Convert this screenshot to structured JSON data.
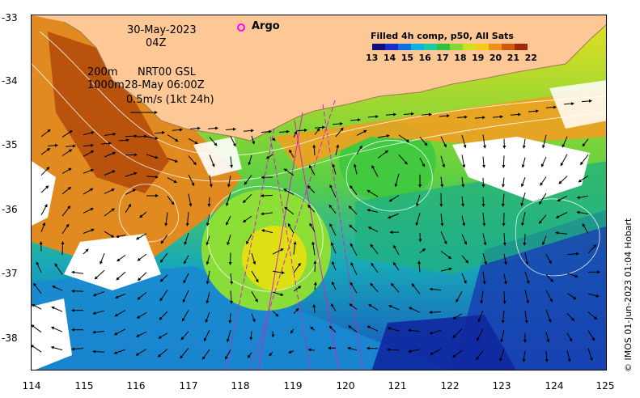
{
  "map": {
    "date": "30-May-2023",
    "time": "04Z",
    "depth_line1": "200m",
    "depth_line2": "1000m",
    "model_label": "NRT00 GSL",
    "model_time": "28-May 06:00Z",
    "velocity_scale": "0.5m/s (1kt 24h)",
    "argo_label": "Argo",
    "legend_title": "Filled 4h comp, p50, All Sats",
    "legend_ticks": [
      "13",
      "14",
      "15",
      "16",
      "17",
      "18",
      "19",
      "20",
      "21",
      "22"
    ],
    "credit": "© IMOS 01-Jun-2023 01:04 Hobart",
    "x_ticks": [
      "114",
      "115",
      "116",
      "117",
      "118",
      "119",
      "120",
      "121",
      "122",
      "123",
      "124",
      "125"
    ],
    "y_ticks": [
      "-33",
      "-34",
      "-35",
      "-36",
      "-37",
      "-38"
    ],
    "colors": {
      "land": "#fdc896",
      "cold": "#1030b0",
      "warm": "#c05a10",
      "argo": "#ff00ff",
      "track": "#d020d0"
    }
  }
}
